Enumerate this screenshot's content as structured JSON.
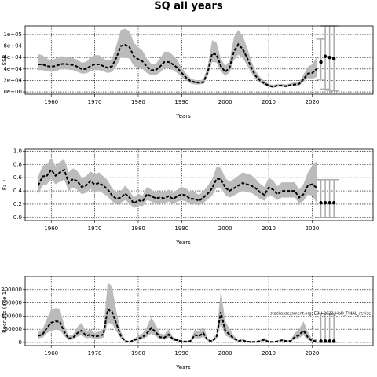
{
  "chart_data": [
    {
      "type": "line",
      "title": "SQ all years",
      "xlabel": "Years",
      "ylabel": "SSB",
      "xlim": [
        1954,
        2034
      ],
      "xticks": [
        1960,
        1970,
        1980,
        1990,
        2000,
        2010,
        2020
      ],
      "ylim": [
        -4000,
        115000
      ],
      "yticks": [
        {
          "value": 0,
          "label": "0e+00"
        },
        {
          "value": 20000,
          "label": "2e+04"
        },
        {
          "value": 40000,
          "label": "4e+04"
        },
        {
          "value": 60000,
          "label": "6e+04"
        },
        {
          "value": 80000,
          "label": "8e+04"
        },
        {
          "value": 100000,
          "label": "1e+05"
        }
      ],
      "grid": true,
      "color": "#000000",
      "band_color": "#bbbbbb",
      "x": [
        1957,
        1958,
        1959,
        1960,
        1961,
        1962,
        1963,
        1964,
        1965,
        1966,
        1967,
        1968,
        1969,
        1970,
        1971,
        1972,
        1973,
        1974,
        1975,
        1976,
        1977,
        1978,
        1979,
        1980,
        1981,
        1982,
        1983,
        1984,
        1985,
        1986,
        1987,
        1988,
        1989,
        1990,
        1991,
        1992,
        1993,
        1994,
        1995,
        1996,
        1997,
        1998,
        1999,
        2000,
        2001,
        2002,
        2003,
        2004,
        2005,
        2006,
        2007,
        2008,
        2009,
        2010,
        2011,
        2012,
        2013,
        2014,
        2015,
        2016,
        2017,
        2018,
        2019,
        2020,
        2021
      ],
      "values": [
        48000,
        48000,
        45000,
        44000,
        45000,
        48000,
        49000,
        48000,
        47000,
        44000,
        40000,
        40000,
        45000,
        48000,
        48000,
        45000,
        42000,
        45000,
        60000,
        80000,
        82000,
        78000,
        62000,
        57000,
        53000,
        44000,
        38000,
        38000,
        44000,
        52000,
        52000,
        48000,
        42000,
        33000,
        25000,
        19000,
        17000,
        16000,
        17000,
        35000,
        67000,
        65000,
        45000,
        35000,
        42000,
        70000,
        83000,
        75000,
        60000,
        42000,
        28000,
        20000,
        15000,
        11000,
        9000,
        11000,
        11000,
        10000,
        12000,
        13000,
        14000,
        22000,
        32000,
        33000,
        40000
      ],
      "lower": [
        38000,
        38000,
        36000,
        35000,
        36000,
        39000,
        40000,
        39000,
        38000,
        35000,
        32000,
        32000,
        36000,
        38000,
        38000,
        36000,
        33000,
        35000,
        45000,
        60000,
        60000,
        58000,
        45000,
        42000,
        40000,
        33000,
        29000,
        29000,
        34000,
        41000,
        41000,
        38000,
        33000,
        26000,
        20000,
        15000,
        13000,
        13000,
        14000,
        28000,
        52000,
        51000,
        36000,
        28000,
        34000,
        55000,
        65000,
        59000,
        47000,
        33000,
        22000,
        16000,
        12000,
        9000,
        7000,
        9000,
        9000,
        8000,
        10000,
        11000,
        11000,
        17000,
        24000,
        23000,
        26000
      ],
      "upper": [
        66000,
        64000,
        58000,
        55000,
        58000,
        62000,
        62000,
        60000,
        59000,
        56000,
        51000,
        52000,
        60000,
        64000,
        64000,
        58000,
        54000,
        58000,
        82000,
        108000,
        110000,
        106000,
        86000,
        78000,
        72000,
        58000,
        49000,
        49000,
        58000,
        70000,
        70000,
        64000,
        56000,
        42000,
        32000,
        24000,
        21000,
        20000,
        22000,
        46000,
        90000,
        86000,
        58000,
        45000,
        54000,
        95000,
        108000,
        98000,
        78000,
        54000,
        36000,
        26000,
        19000,
        14000,
        12000,
        14000,
        14000,
        13000,
        15000,
        17000,
        18000,
        30000,
        44000,
        48000,
        60000
      ],
      "projection": {
        "x": [
          2022,
          2023,
          2024,
          2025
        ],
        "values": [
          52000,
          62000,
          60000,
          58000
        ],
        "lower": [
          22000,
          5000,
          3000,
          2000
        ],
        "upper": [
          92000,
          115000,
          115000,
          115000
        ]
      }
    },
    {
      "type": "line",
      "xlabel": "Years",
      "ylabel": "F₃₋₇",
      "xlim": [
        1954,
        2034
      ],
      "xticks": [
        1960,
        1970,
        1980,
        1990,
        2000,
        2010,
        2020
      ],
      "ylim": [
        -0.05,
        1.03
      ],
      "yticks": [
        {
          "value": 0,
          "label": "0.0"
        },
        0.2,
        0.4,
        0.6,
        0.8,
        {
          "value": 1,
          "label": "1.0"
        }
      ],
      "grid": true,
      "color": "#000000",
      "band_color": "#bbbbbb",
      "x": [
        1957,
        1958,
        1959,
        1960,
        1961,
        1962,
        1963,
        1964,
        1965,
        1966,
        1967,
        1968,
        1969,
        1970,
        1971,
        1972,
        1973,
        1974,
        1975,
        1976,
        1977,
        1978,
        1979,
        1980,
        1981,
        1982,
        1983,
        1984,
        1985,
        1986,
        1987,
        1988,
        1989,
        1990,
        1991,
        1992,
        1993,
        1994,
        1995,
        1996,
        1997,
        1998,
        1999,
        2000,
        2001,
        2002,
        2003,
        2004,
        2005,
        2006,
        2007,
        2008,
        2009,
        2010,
        2011,
        2012,
        2013,
        2014,
        2015,
        2016,
        2017,
        2018,
        2019,
        2020,
        2021
      ],
      "values": [
        0.48,
        0.62,
        0.63,
        0.72,
        0.63,
        0.68,
        0.72,
        0.52,
        0.58,
        0.55,
        0.46,
        0.48,
        0.55,
        0.5,
        0.52,
        0.48,
        0.42,
        0.33,
        0.28,
        0.3,
        0.36,
        0.3,
        0.21,
        0.26,
        0.24,
        0.35,
        0.32,
        0.29,
        0.3,
        0.29,
        0.32,
        0.28,
        0.32,
        0.35,
        0.33,
        0.28,
        0.28,
        0.25,
        0.3,
        0.36,
        0.44,
        0.58,
        0.58,
        0.45,
        0.4,
        0.44,
        0.48,
        0.52,
        0.5,
        0.48,
        0.44,
        0.38,
        0.34,
        0.45,
        0.42,
        0.35,
        0.4,
        0.4,
        0.4,
        0.4,
        0.3,
        0.35,
        0.48,
        0.5,
        0.45
      ],
      "lower": [
        0.35,
        0.48,
        0.5,
        0.58,
        0.5,
        0.54,
        0.57,
        0.4,
        0.45,
        0.42,
        0.35,
        0.37,
        0.43,
        0.38,
        0.4,
        0.36,
        0.31,
        0.24,
        0.2,
        0.22,
        0.26,
        0.21,
        0.14,
        0.18,
        0.17,
        0.26,
        0.24,
        0.21,
        0.22,
        0.21,
        0.24,
        0.2,
        0.24,
        0.26,
        0.24,
        0.2,
        0.2,
        0.18,
        0.22,
        0.27,
        0.33,
        0.45,
        0.45,
        0.34,
        0.3,
        0.33,
        0.37,
        0.4,
        0.38,
        0.37,
        0.33,
        0.28,
        0.25,
        0.34,
        0.31,
        0.26,
        0.3,
        0.3,
        0.3,
        0.3,
        0.21,
        0.25,
        0.34,
        0.33,
        0.22
      ],
      "upper": [
        0.62,
        0.78,
        0.8,
        0.9,
        0.78,
        0.84,
        0.88,
        0.68,
        0.74,
        0.7,
        0.6,
        0.62,
        0.7,
        0.65,
        0.68,
        0.62,
        0.56,
        0.44,
        0.38,
        0.4,
        0.48,
        0.4,
        0.3,
        0.36,
        0.33,
        0.46,
        0.42,
        0.38,
        0.4,
        0.38,
        0.42,
        0.37,
        0.42,
        0.46,
        0.44,
        0.38,
        0.38,
        0.34,
        0.4,
        0.48,
        0.58,
        0.76,
        0.75,
        0.6,
        0.54,
        0.58,
        0.63,
        0.68,
        0.66,
        0.64,
        0.58,
        0.51,
        0.46,
        0.6,
        0.56,
        0.47,
        0.53,
        0.53,
        0.53,
        0.53,
        0.42,
        0.5,
        0.68,
        0.78,
        0.85
      ],
      "projection": {
        "x": [
          2022,
          2023,
          2024,
          2025
        ],
        "values": [
          0.22,
          0.22,
          0.22,
          0.22
        ],
        "lower": [
          0,
          0,
          0,
          0
        ],
        "upper": [
          0.57,
          0.57,
          0.57,
          0.57
        ]
      }
    },
    {
      "type": "line",
      "xlabel": "Years",
      "ylabel": "Recruits (age 1)",
      "annotation": "stockassessment.org, EBH-2022_HaD_FINAL_revise",
      "xlim": [
        1954,
        2034
      ],
      "xticks": [
        1960,
        1970,
        1980,
        1990,
        2000,
        2010,
        2020
      ],
      "ylim": [
        -12000,
        250000
      ],
      "yticks": [
        0,
        50000,
        100000,
        150000,
        200000
      ],
      "grid": true,
      "color": "#000000",
      "band_color": "#bbbbbb",
      "x": [
        1957,
        1958,
        1959,
        1960,
        1961,
        1962,
        1963,
        1964,
        1965,
        1966,
        1967,
        1968,
        1969,
        1970,
        1971,
        1972,
        1973,
        1974,
        1975,
        1976,
        1977,
        1978,
        1979,
        1980,
        1981,
        1982,
        1983,
        1984,
        1985,
        1986,
        1987,
        1988,
        1989,
        1990,
        1991,
        1992,
        1993,
        1994,
        1995,
        1996,
        1997,
        1998,
        1999,
        2000,
        2001,
        2002,
        2003,
        2004,
        2005,
        2006,
        2007,
        2008,
        2009,
        2010,
        2011,
        2012,
        2013,
        2014,
        2015,
        2016,
        2017,
        2018,
        2019,
        2020,
        2021
      ],
      "values": [
        25000,
        30000,
        55000,
        75000,
        80000,
        78000,
        40000,
        15000,
        18000,
        35000,
        45000,
        25000,
        30000,
        22000,
        25000,
        30000,
        125000,
        115000,
        70000,
        25000,
        5000,
        2000,
        8000,
        15000,
        20000,
        35000,
        55000,
        40000,
        20000,
        18000,
        30000,
        12000,
        8000,
        4000,
        3000,
        5000,
        28000,
        25000,
        35000,
        8000,
        5000,
        20000,
        115000,
        45000,
        30000,
        15000,
        5000,
        8000,
        3000,
        2000,
        2000,
        5000,
        10000,
        2000,
        2000,
        4000,
        8000,
        5000,
        5000,
        20000,
        28000,
        45000,
        20000,
        5000,
        6000
      ],
      "lower": [
        15000,
        18000,
        35000,
        45000,
        48000,
        46000,
        24000,
        9000,
        11000,
        22000,
        28000,
        15000,
        18000,
        13000,
        15000,
        18000,
        75000,
        70000,
        42000,
        15000,
        3000,
        1000,
        5000,
        9000,
        12000,
        21000,
        33000,
        24000,
        12000,
        11000,
        18000,
        7000,
        5000,
        2000,
        2000,
        3000,
        17000,
        15000,
        21000,
        5000,
        3000,
        12000,
        70000,
        27000,
        18000,
        9000,
        3000,
        5000,
        2000,
        1000,
        1000,
        3000,
        6000,
        1000,
        1000,
        2000,
        5000,
        3000,
        3000,
        12000,
        17000,
        27000,
        10000,
        2000,
        1000
      ],
      "upper": [
        40000,
        50000,
        90000,
        125000,
        130000,
        128000,
        65000,
        25000,
        30000,
        58000,
        75000,
        42000,
        50000,
        36000,
        42000,
        50000,
        230000,
        210000,
        115000,
        42000,
        9000,
        4000,
        14000,
        25000,
        34000,
        60000,
        95000,
        68000,
        34000,
        30000,
        50000,
        20000,
        14000,
        7000,
        6000,
        9000,
        48000,
        42000,
        60000,
        14000,
        9000,
        34000,
        200000,
        80000,
        52000,
        26000,
        9000,
        14000,
        6000,
        4000,
        4000,
        9000,
        18000,
        4000,
        4000,
        7000,
        14000,
        9000,
        9000,
        36000,
        50000,
        80000,
        40000,
        12000,
        15000
      ],
      "projection": {
        "x": [
          2022,
          2023,
          2024,
          2025
        ],
        "values": [
          5000,
          5000,
          5000,
          5000
        ],
        "lower": [
          0,
          0,
          0,
          0
        ],
        "upper": [
          110000,
          110000,
          110000,
          110000
        ]
      }
    }
  ]
}
